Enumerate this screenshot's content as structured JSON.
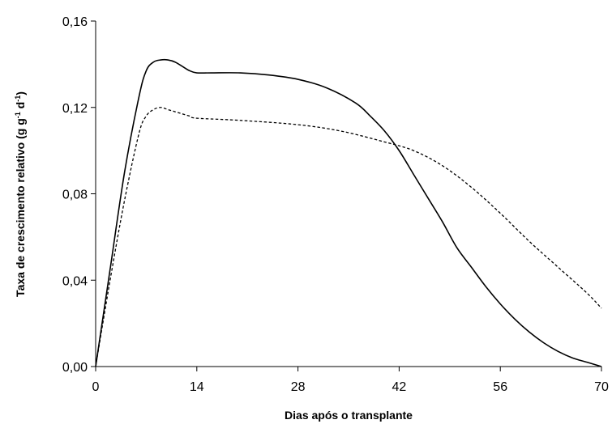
{
  "chart_data": {
    "type": "line",
    "xlabel": "Dias após o transplante",
    "ylabel": {
      "base": "Taxa de crescimento relativo (g g",
      "sup1": "-1",
      "mid": " d",
      "sup2": "-1",
      "end": ")"
    },
    "xlim": [
      0,
      70
    ],
    "ylim": [
      0,
      0.16
    ],
    "x_ticks": [
      0,
      14,
      28,
      42,
      56,
      70
    ],
    "x_tick_labels": [
      "0",
      "14",
      "28",
      "42",
      "56",
      "70"
    ],
    "y_ticks": [
      0,
      0.04,
      0.08,
      0.12,
      0.16
    ],
    "y_tick_labels": [
      "0,00",
      "0,04",
      "0,08",
      "0,12",
      "0,16"
    ],
    "grid": false,
    "legend": "none",
    "series": [
      {
        "style": "solid",
        "color": "#000000",
        "x": [
          0,
          2,
          4,
          6,
          7,
          8,
          9,
          10,
          11,
          12,
          13,
          14,
          16,
          20,
          24,
          28,
          32,
          36,
          38,
          40,
          42,
          44,
          46,
          48,
          50,
          52,
          54,
          56,
          58,
          60,
          62,
          64,
          66,
          68,
          70
        ],
        "y": [
          0,
          0.045,
          0.09,
          0.125,
          0.137,
          0.141,
          0.142,
          0.142,
          0.141,
          0.139,
          0.137,
          0.136,
          0.136,
          0.136,
          0.135,
          0.133,
          0.129,
          0.122,
          0.116,
          0.109,
          0.1,
          0.089,
          0.078,
          0.067,
          0.055,
          0.046,
          0.037,
          0.029,
          0.022,
          0.016,
          0.011,
          0.007,
          0.004,
          0.002,
          0.0
        ]
      },
      {
        "style": "dashed",
        "color": "#000000",
        "x": [
          0,
          2,
          4,
          6,
          7,
          8,
          9,
          10,
          11,
          12,
          13,
          14,
          20,
          28,
          34,
          40,
          44,
          48,
          52,
          56,
          60,
          64,
          68,
          70
        ],
        "y": [
          0,
          0.04,
          0.077,
          0.108,
          0.116,
          0.119,
          0.12,
          0.119,
          0.118,
          0.117,
          0.116,
          0.115,
          0.114,
          0.112,
          0.109,
          0.104,
          0.1,
          0.093,
          0.083,
          0.071,
          0.058,
          0.046,
          0.034,
          0.027
        ]
      }
    ]
  }
}
